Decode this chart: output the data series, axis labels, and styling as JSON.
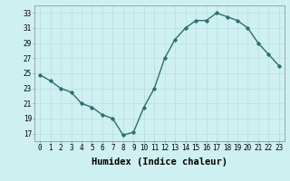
{
  "x": [
    0,
    1,
    2,
    3,
    4,
    5,
    6,
    7,
    8,
    9,
    10,
    11,
    12,
    13,
    14,
    15,
    16,
    17,
    18,
    19,
    20,
    21,
    22,
    23
  ],
  "y": [
    24.8,
    24.0,
    23.0,
    22.5,
    21.0,
    20.5,
    19.5,
    19.0,
    16.8,
    17.2,
    20.5,
    23.0,
    27.0,
    29.5,
    31.0,
    32.0,
    32.0,
    33.0,
    32.5,
    32.0,
    31.0,
    29.0,
    27.5,
    26.0
  ],
  "line_color": "#2e6e6e",
  "marker": "D",
  "marker_size": 1.8,
  "bg_color": "#cff0f0",
  "grid_color": "#b8dede",
  "xlabel": "Humidex (Indice chaleur)",
  "ylim": [
    16,
    34
  ],
  "xlim": [
    -0.5,
    23.5
  ],
  "yticks": [
    17,
    19,
    21,
    23,
    25,
    27,
    29,
    31,
    33
  ],
  "xticks": [
    0,
    1,
    2,
    3,
    4,
    5,
    6,
    7,
    8,
    9,
    10,
    11,
    12,
    13,
    14,
    15,
    16,
    17,
    18,
    19,
    20,
    21,
    22,
    23
  ],
  "tick_fontsize": 5.5,
  "xlabel_fontsize": 7.5,
  "line_width": 1.0
}
